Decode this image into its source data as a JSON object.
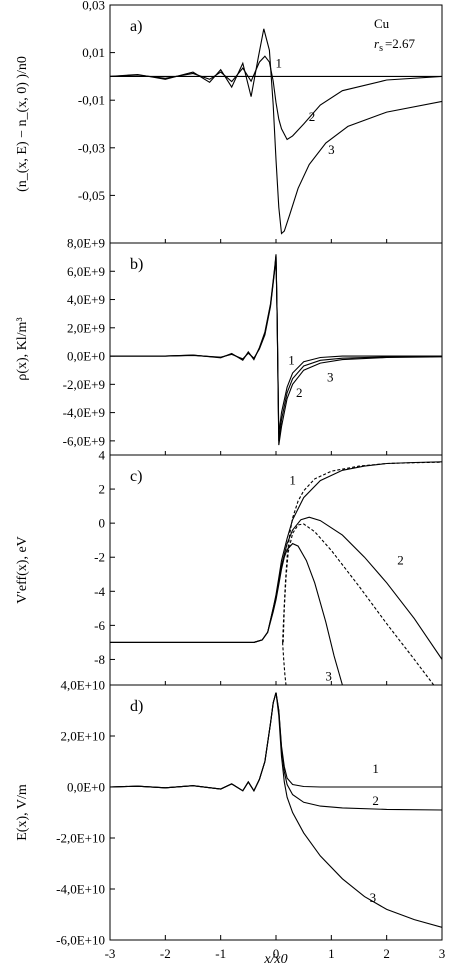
{
  "chart_data": {
    "type": "line",
    "xlabel": "x/x0",
    "x_ticks": [
      -3,
      -2,
      -1,
      0,
      1,
      2,
      3
    ],
    "xlim": [
      -3,
      3
    ],
    "panels": [
      {
        "id": "a",
        "letter": "a)",
        "ylabel": "(n_(x, E) − n_(x, 0) )/n0",
        "ylim": [
          -0.07,
          0.03
        ],
        "yticks": [
          0.03,
          0.01,
          -0.01,
          -0.03,
          -0.05
        ],
        "ytick_labels": [
          "0,03",
          "0,01",
          "-0,01",
          "-0,03",
          "-0,05"
        ],
        "annotation": {
          "material": "Cu",
          "rs_label": "r",
          "rs_sub": "s",
          "rs_value": "=2.67"
        },
        "series": [
          {
            "label": "1",
            "x": [
              -3,
              3
            ],
            "y": [
              0,
              0
            ]
          },
          {
            "label": "2",
            "x": [
              -3,
              -2.5,
              -2,
              -1.5,
              -1.2,
              -1.0,
              -0.8,
              -0.6,
              -0.45,
              -0.3,
              -0.2,
              -0.12,
              -0.05,
              0.0,
              0.05,
              0.1,
              0.2,
              0.3,
              0.5,
              0.8,
              1.2,
              2.0,
              3.0
            ],
            "y": [
              0,
              0.0006,
              -0.0008,
              0.0012,
              -0.0012,
              0.0018,
              -0.0022,
              0.0035,
              -0.002,
              0.006,
              0.0085,
              0.006,
              -0.002,
              -0.011,
              -0.018,
              -0.022,
              -0.0265,
              -0.025,
              -0.02,
              -0.012,
              -0.006,
              -0.0015,
              0
            ]
          },
          {
            "label": "3",
            "x": [
              -3,
              -2.5,
              -2,
              -1.5,
              -1.2,
              -1.0,
              -0.8,
              -0.6,
              -0.45,
              -0.32,
              -0.22,
              -0.12,
              -0.05,
              0.0,
              0.05,
              0.1,
              0.15,
              0.25,
              0.4,
              0.6,
              0.9,
              1.3,
              2.0,
              3.0
            ],
            "y": [
              0,
              0.0008,
              -0.0012,
              0.0018,
              -0.0025,
              0.0028,
              -0.0045,
              0.0055,
              -0.0085,
              0.008,
              0.02,
              0.011,
              -0.012,
              -0.035,
              -0.055,
              -0.066,
              -0.065,
              -0.058,
              -0.047,
              -0.037,
              -0.028,
              -0.021,
              -0.015,
              -0.0105
            ]
          }
        ],
        "curve_labels": [
          {
            "text": "1",
            "x": 0.05,
            "y": 0.0055
          },
          {
            "text": "2",
            "x": 0.65,
            "y": -0.017
          },
          {
            "text": "3",
            "x": 1.0,
            "y": -0.031
          }
        ]
      },
      {
        "id": "b",
        "letter": "b)",
        "ylabel": "ρ(x),  Kl/m³",
        "ylim": [
          -7000000000.0,
          8000000000.0
        ],
        "yticks": [
          8000000000.0,
          6000000000.0,
          4000000000.0,
          2000000000.0,
          0,
          -2000000000.0,
          -4000000000.0,
          -6000000000.0
        ],
        "ytick_labels": [
          "8,0E+9",
          "6,0E+9",
          "4,0E+9",
          "2,0E+9",
          "0,0E+0",
          "-2,0E+9",
          "-4,0E+9",
          "-6,0E+9"
        ],
        "series": [
          {
            "label": "1",
            "x": [
              -3,
              -2.5,
              -2,
              -1.5,
              -1.0,
              -0.8,
              -0.6,
              -0.5,
              -0.4,
              -0.3,
              -0.2,
              -0.1,
              -0.02,
              0.0,
              0.02,
              0.05,
              0.1,
              0.2,
              0.3,
              0.5,
              0.8,
              1.2,
              2.0,
              3.0
            ],
            "y": [
              0,
              0,
              0,
              50000000.0,
              -80000000.0,
              120000000.0,
              -200000000.0,
              200000000.0,
              -150000000.0,
              500000000.0,
              1500000000.0,
              3500000000.0,
              6200000000.0,
              7000000000.0,
              3000000000.0,
              -5500000000.0,
              -4000000000.0,
              -2200000000.0,
              -1200000000.0,
              -400000000.0,
              -100000000.0,
              0,
              0,
              0
            ]
          },
          {
            "label": "2",
            "x": [
              -3,
              -2.5,
              -2,
              -1.5,
              -1.0,
              -0.8,
              -0.6,
              -0.5,
              -0.4,
              -0.3,
              -0.2,
              -0.1,
              -0.02,
              0.0,
              0.02,
              0.05,
              0.1,
              0.2,
              0.3,
              0.5,
              0.8,
              1.2,
              2.0,
              3.0
            ],
            "y": [
              0,
              0,
              0,
              60000000.0,
              -100000000.0,
              150000000.0,
              -250000000.0,
              250000000.0,
              -200000000.0,
              550000000.0,
              1600000000.0,
              3600000000.0,
              6300000000.0,
              7100000000.0,
              3000000000.0,
              -6000000000.0,
              -4500000000.0,
              -2600000000.0,
              -1600000000.0,
              -700000000.0,
              -300000000.0,
              -150000000.0,
              -60000000.0,
              0
            ]
          },
          {
            "label": "3",
            "x": [
              -3,
              -2.5,
              -2,
              -1.5,
              -1.0,
              -0.8,
              -0.6,
              -0.5,
              -0.4,
              -0.3,
              -0.2,
              -0.1,
              -0.02,
              0.0,
              0.02,
              0.05,
              0.1,
              0.2,
              0.3,
              0.5,
              0.8,
              1.2,
              2.0,
              3.0
            ],
            "y": [
              0,
              0,
              0,
              70000000.0,
              -120000000.0,
              180000000.0,
              -300000000.0,
              300000000.0,
              -250000000.0,
              600000000.0,
              1700000000.0,
              3700000000.0,
              6400000000.0,
              7200000000.0,
              3000000000.0,
              -6300000000.0,
              -5000000000.0,
              -3000000000.0,
              -2000000000.0,
              -1000000000.0,
              -500000000.0,
              -250000000.0,
              -100000000.0,
              -50000000.0
            ]
          }
        ],
        "curve_labels": [
          {
            "text": "1",
            "x": 0.28,
            "y": -300000000.0
          },
          {
            "text": "2",
            "x": 0.42,
            "y": -2600000000.0
          },
          {
            "text": "3",
            "x": 0.98,
            "y": -1500000000.0
          }
        ]
      },
      {
        "id": "c",
        "letter": "c)",
        "ylabel": "V'eff(x),  eV",
        "ylim": [
          -9.5,
          4
        ],
        "yticks": [
          4,
          2,
          0,
          -2,
          -4,
          -6,
          -8
        ],
        "ytick_labels": [
          "4",
          "2",
          "0",
          "-2",
          "-4",
          "-6",
          "-8"
        ],
        "series": [
          {
            "label": "1",
            "style": "solid",
            "x": [
              -3,
              -0.4,
              -0.25,
              -0.15,
              -0.05,
              0.0,
              0.05,
              0.1,
              0.2,
              0.3,
              0.5,
              0.8,
              1.2,
              1.6,
              2.0,
              2.5,
              3.0
            ],
            "y": [
              -7.0,
              -7.0,
              -6.85,
              -6.4,
              -5.0,
              -4.2,
              -3.2,
              -2.2,
              -0.9,
              0.2,
              1.5,
              2.5,
              3.1,
              3.35,
              3.5,
              3.56,
              3.6
            ]
          },
          {
            "label": "1",
            "style": "dashed",
            "x": [
              0.12,
              0.14,
              0.17,
              0.2,
              0.25,
              0.3,
              0.4,
              0.5,
              0.7,
              1.0,
              1.5,
              2.0,
              2.5,
              3.0
            ],
            "y": [
              -7.0,
              -5.5,
              -3.5,
              -2.0,
              -0.6,
              0.3,
              1.3,
              1.9,
              2.6,
              3.05,
              3.35,
              3.5,
              3.55,
              3.58
            ]
          },
          {
            "label": "2",
            "style": "solid",
            "x": [
              -3,
              -0.4,
              -0.25,
              -0.15,
              -0.05,
              0.0,
              0.05,
              0.1,
              0.2,
              0.3,
              0.45,
              0.6,
              0.8,
              1.2,
              1.6,
              2.0,
              2.5,
              3.0
            ],
            "y": [
              -7.0,
              -7.0,
              -6.85,
              -6.4,
              -5.0,
              -4.3,
              -3.4,
              -2.5,
              -1.2,
              -0.4,
              0.2,
              0.35,
              0.15,
              -0.7,
              -2.0,
              -3.5,
              -5.6,
              -8.0
            ]
          },
          {
            "label": "2",
            "style": "dashed",
            "x": [
              0.13,
              0.15,
              0.18,
              0.22,
              0.3,
              0.4,
              0.5,
              0.7,
              1.0,
              1.5,
              2.0,
              2.5,
              2.85
            ],
            "y": [
              -7.0,
              -5.0,
              -3.2,
              -1.7,
              -0.6,
              -0.1,
              -0.05,
              -0.5,
              -1.6,
              -3.7,
              -5.9,
              -8.0,
              -9.5
            ]
          },
          {
            "label": "3",
            "style": "solid",
            "x": [
              -3,
              -0.4,
              -0.25,
              -0.15,
              -0.05,
              0.0,
              0.05,
              0.1,
              0.15,
              0.2,
              0.3,
              0.4,
              0.55,
              0.7,
              0.9,
              1.05,
              1.2
            ],
            "y": [
              -7.0,
              -7.0,
              -6.85,
              -6.4,
              -5.2,
              -4.5,
              -3.6,
              -2.7,
              -2.0,
              -1.55,
              -1.2,
              -1.35,
              -2.2,
              -3.5,
              -5.8,
              -7.8,
              -9.5
            ]
          },
          {
            "label": "3",
            "style": "dashed",
            "x": [
              0.12,
              0.14,
              0.16,
              0.18
            ],
            "y": [
              -7.0,
              -8.0,
              -8.9,
              -9.5
            ]
          }
        ],
        "curve_labels": [
          {
            "text": "1",
            "x": 0.3,
            "y": 2.5
          },
          {
            "text": "2",
            "x": 2.25,
            "y": -2.2
          },
          {
            "text": "3",
            "x": 0.95,
            "y": -9.0
          }
        ]
      },
      {
        "id": "d",
        "letter": "d)",
        "ylabel": "E(x),  V/m",
        "ylim": [
          -60000000000.0,
          40000000000.0
        ],
        "yticks": [
          40000000000.0,
          20000000000.0,
          0,
          -20000000000.0,
          -40000000000.0,
          -60000000000.0
        ],
        "ytick_labels": [
          "4,0E+10",
          "2,0E+10",
          "0,0E+0",
          "-2,0E+10",
          "-4,0E+10",
          "-6,0E+10"
        ],
        "series": [
          {
            "label": "1",
            "x": [
              -3,
              -2.5,
              -2,
              -1.5,
              -1.0,
              -0.8,
              -0.6,
              -0.5,
              -0.4,
              -0.3,
              -0.2,
              -0.1,
              -0.05,
              0.0,
              0.05,
              0.1,
              0.15,
              0.2,
              0.3,
              0.5,
              0.8,
              1.2,
              2.0,
              3.0
            ],
            "y": [
              0,
              300000000.0,
              -300000000.0,
              500000000.0,
              -800000000.0,
              1200000000.0,
              -1500000000.0,
              2000000000.0,
              -1500000000.0,
              3000000000.0,
              10000000000.0,
              25000000000.0,
              33000000000.0,
              37000000000.0,
              30000000000.0,
              16000000000.0,
              8000000000.0,
              3500000000.0,
              1000000000.0,
              200000000.0,
              0,
              0,
              0,
              0
            ]
          },
          {
            "label": "2",
            "x": [
              -3,
              -2.5,
              -2,
              -1.5,
              -1.0,
              -0.8,
              -0.6,
              -0.5,
              -0.4,
              -0.3,
              -0.2,
              -0.1,
              -0.05,
              0.0,
              0.05,
              0.1,
              0.15,
              0.2,
              0.3,
              0.5,
              0.8,
              1.2,
              2.0,
              3.0
            ],
            "y": [
              0,
              300000000.0,
              -300000000.0,
              500000000.0,
              -800000000.0,
              1200000000.0,
              -1500000000.0,
              2000000000.0,
              -1500000000.0,
              3000000000.0,
              10000000000.0,
              25000000000.0,
              33000000000.0,
              37000000000.0,
              30000000000.0,
              15000000000.0,
              6000000000.0,
              1000000000.0,
              -3000000000.0,
              -6000000000.0,
              -7500000000.0,
              -8200000000.0,
              -8800000000.0,
              -9000000000.0
            ]
          },
          {
            "label": "3",
            "x": [
              -3,
              -2.5,
              -2,
              -1.5,
              -1.0,
              -0.8,
              -0.6,
              -0.5,
              -0.4,
              -0.3,
              -0.2,
              -0.1,
              -0.05,
              0.0,
              0.05,
              0.1,
              0.15,
              0.2,
              0.3,
              0.5,
              0.8,
              1.2,
              1.6,
              2.0,
              2.5,
              3.0
            ],
            "y": [
              0,
              300000000.0,
              -300000000.0,
              500000000.0,
              -800000000.0,
              1200000000.0,
              -1500000000.0,
              2000000000.0,
              -1500000000.0,
              3000000000.0,
              10000000000.0,
              25000000000.0,
              33000000000.0,
              37000000000.0,
              28000000000.0,
              12000000000.0,
              2000000000.0,
              -4000000000.0,
              -10000000000.0,
              -18000000000.0,
              -27000000000.0,
              -36000000000.0,
              -43000000000.0,
              -48000000000.0,
              -52000000000.0,
              -55000000000.0
            ]
          }
        ],
        "curve_labels": [
          {
            "text": "1",
            "x": 1.8,
            "y": 7000000000.0
          },
          {
            "text": "2",
            "x": 1.8,
            "y": -5500000000.0
          },
          {
            "text": "3",
            "x": 1.75,
            "y": -43500000000.0
          }
        ]
      }
    ]
  }
}
